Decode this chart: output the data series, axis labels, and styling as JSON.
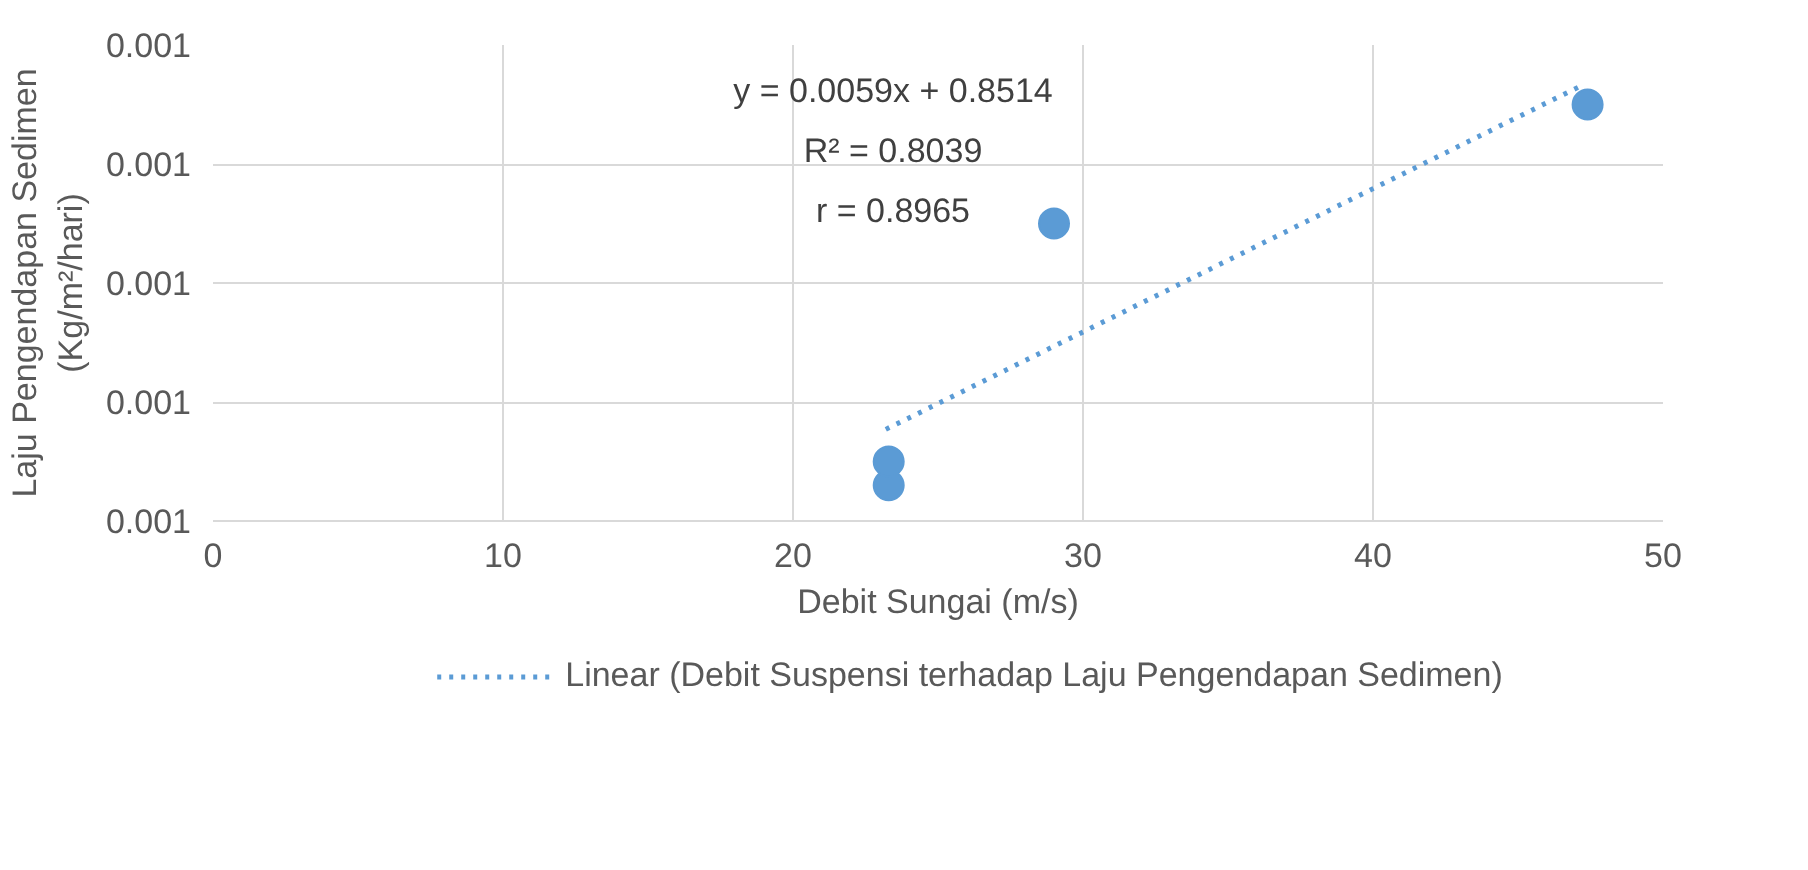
{
  "chart_data": {
    "type": "scatter",
    "xlabel": "Debit Sungai (m/s)",
    "ylabel": "Laju Pengendapan Sedimen (Kg/m²/hari)",
    "xlim": [
      0,
      50
    ],
    "xticks": [
      0,
      10,
      20,
      30,
      40,
      50
    ],
    "ylim": [
      0.001,
      0.0014
    ],
    "yticks": [
      {
        "value": 0.001,
        "label": "0.001"
      },
      {
        "value": 0.0011,
        "label": "0.001"
      },
      {
        "value": 0.0012,
        "label": "0.001"
      },
      {
        "value": 0.0013,
        "label": "0.001"
      },
      {
        "value": 0.0014,
        "label": "0.001"
      }
    ],
    "grid": true,
    "legend": "bottom",
    "series": [
      {
        "marker": "circle",
        "color": "#5b9bd5",
        "x": [
          23.3,
          23.3,
          29.0,
          47.4
        ],
        "values": [
          0.00103,
          0.00105,
          0.00125,
          0.00135
        ]
      },
      {
        "type": "line",
        "name": "Linear (Debit Suspensi terhadap Laju Pengendapan Sedimen)",
        "color": "#5b9bd5",
        "line_style": "dotted",
        "x": [
          23.2,
          47.2
        ],
        "values": [
          0.001077,
          0.001366
        ]
      }
    ],
    "annotations": [
      "y = 0.0059x + 0.8514",
      "R² = 0.8039",
      "r = 0.8965"
    ]
  }
}
